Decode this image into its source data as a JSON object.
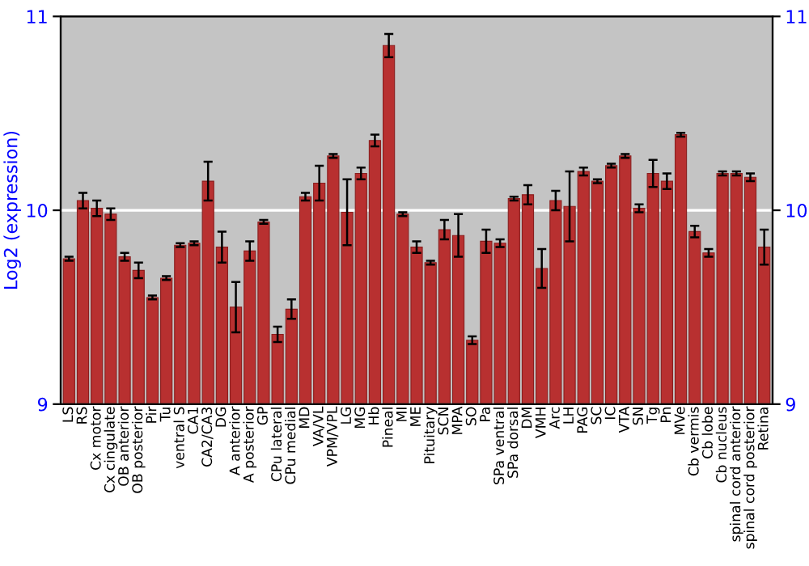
{
  "chart_data": {
    "type": "bar",
    "ylabel": "Log2 (expression)",
    "categories": [
      "LS",
      "RS",
      "Cx motor",
      "Cx cingulate",
      "OB anterior",
      "OB posterior",
      "Pir",
      "Tu",
      "ventral S",
      "CA1",
      "CA2/CA3",
      "DG",
      "A anterior",
      "A posterior",
      "GP",
      "CPu lateral",
      "CPu medial",
      "MD",
      "VA/VL",
      "VPM/VPL",
      "LG",
      "MG",
      "Hb",
      "Pineal",
      "MI",
      "ME",
      "Pituitary",
      "SCN",
      "MPA",
      "SO",
      "Pa",
      "SPa ventral",
      "SPa dorsal",
      "DM",
      "VMH",
      "Arc",
      "LH",
      "PAG",
      "SC",
      "IC",
      "VTA",
      "SN",
      "Tg",
      "Pn",
      "MVe",
      "Cb vermis",
      "Cb lobe",
      "Cb nucleus",
      "spinal cord anterior",
      "spinal cord posterior",
      "Retina"
    ],
    "values": [
      9.75,
      10.05,
      10.01,
      9.98,
      9.76,
      9.69,
      9.55,
      9.65,
      9.82,
      9.83,
      10.15,
      9.81,
      9.5,
      9.79,
      9.94,
      9.36,
      9.49,
      10.07,
      10.14,
      10.28,
      9.99,
      10.19,
      10.36,
      10.85,
      9.98,
      9.81,
      9.73,
      9.9,
      9.87,
      9.33,
      9.84,
      9.83,
      10.06,
      10.08,
      9.7,
      10.05,
      10.02,
      10.2,
      10.15,
      10.23,
      10.28,
      10.01,
      10.19,
      10.15,
      10.39,
      9.89,
      9.78,
      10.19,
      10.19,
      10.17,
      9.81
    ],
    "errors": [
      0.01,
      0.04,
      0.04,
      0.03,
      0.02,
      0.04,
      0.01,
      0.01,
      0.01,
      0.01,
      0.1,
      0.08,
      0.13,
      0.05,
      0.01,
      0.04,
      0.05,
      0.02,
      0.09,
      0.01,
      0.17,
      0.03,
      0.03,
      0.06,
      0.01,
      0.03,
      0.01,
      0.05,
      0.11,
      0.02,
      0.06,
      0.02,
      0.01,
      0.05,
      0.1,
      0.05,
      0.18,
      0.02,
      0.01,
      0.01,
      0.01,
      0.02,
      0.07,
      0.04,
      0.01,
      0.03,
      0.02,
      0.01,
      0.01,
      0.02,
      0.09
    ],
    "color": "#b83030",
    "ylim": [
      9,
      11
    ],
    "yticks": [
      9,
      10,
      11
    ],
    "y2lim": [
      9,
      11
    ],
    "y2ticks": [
      9,
      10,
      11
    ],
    "grid": "y"
  }
}
